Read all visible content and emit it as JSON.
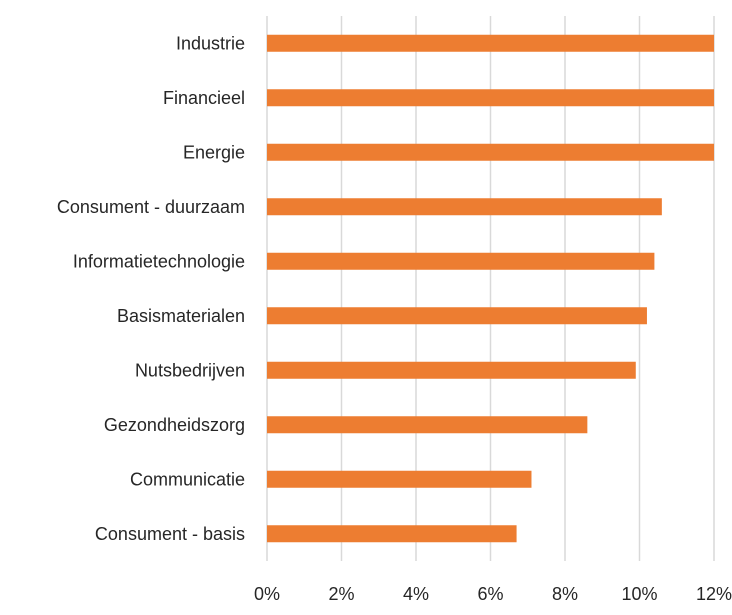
{
  "chart_data": {
    "type": "bar",
    "orientation": "horizontal",
    "categories": [
      "Industrie",
      "Financieel",
      "Energie",
      "Consument - duurzaam",
      "Informatietechnologie",
      "Basismaterialen",
      "Nutsbedrijven",
      "Gezondheidszorg",
      "Communicatie",
      "Consument - basis"
    ],
    "values": [
      12.1,
      12.1,
      12.1,
      10.6,
      10.4,
      10.2,
      9.9,
      8.6,
      7.1,
      6.7
    ],
    "xlim": [
      0,
      12
    ],
    "xticks": [
      "0%",
      "2%",
      "4%",
      "6%",
      "8%",
      "10%",
      "12%"
    ],
    "bar_color": "#ED7D31",
    "grid_color": "#D9D9D9",
    "grid": true,
    "legend": false
  }
}
